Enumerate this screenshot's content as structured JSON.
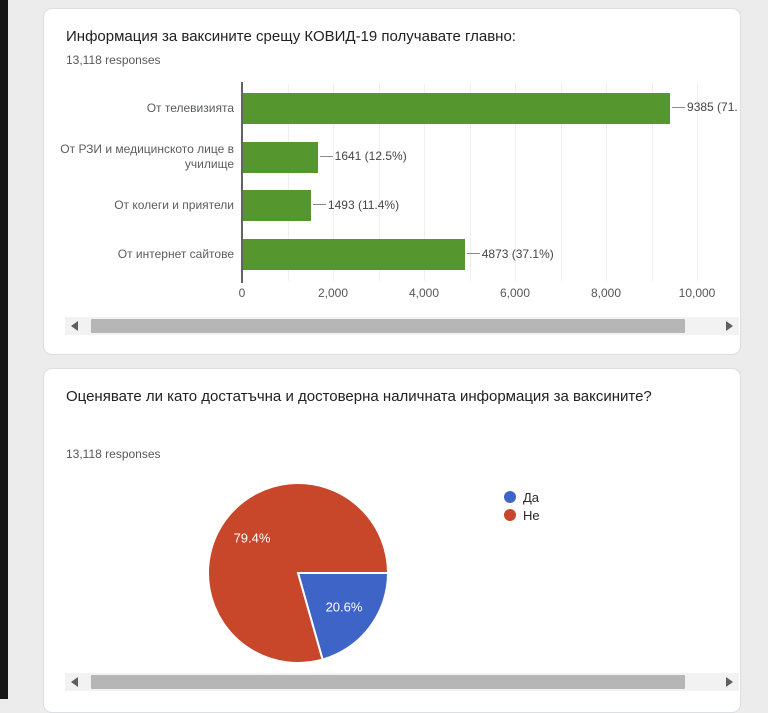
{
  "page": {
    "background_color": "#ececec",
    "edge_strip_color": "#161616",
    "card_background": "#ffffff"
  },
  "cards": [
    {
      "title": "Информация за ваксините срещу КОВИД-19 получавате главно:",
      "responses": "13,118 responses"
    },
    {
      "title": "Оценявате ли като достатъчна и достоверна наличната информация за ваксините?",
      "responses": "13,118 responses"
    }
  ],
  "icons": {
    "scroll_left": "left-triangle",
    "scroll_right": "right-triangle"
  },
  "chart_data": [
    {
      "type": "bar",
      "orientation": "horizontal",
      "categories": [
        "От телевизията",
        "От РЗИ и медицинското лице в училище",
        "От колеги и приятели",
        "От интернет сайтове"
      ],
      "values": [
        9385,
        1641,
        1493,
        4873
      ],
      "annotations": [
        "9385 (71.",
        "1641 (12.5%)",
        "1493 (11.4%)",
        "4873 (37.1%)"
      ],
      "xlim": [
        0,
        10000
      ],
      "x_ticks": [
        "0",
        "2,000",
        "4,000",
        "6,000",
        "8,000",
        "10,000"
      ],
      "gridline_step": 1000,
      "bar_color": "#55962f",
      "grid": true,
      "legend_position": "none"
    },
    {
      "type": "pie",
      "slices": [
        {
          "label": "Да",
          "pct": 20.6,
          "display": "20.6%",
          "color": "#3e64c8"
        },
        {
          "label": "Не",
          "pct": 79.4,
          "display": "79.4%",
          "color": "#c8472a"
        }
      ],
      "start_angle_deg": 90,
      "slice_border_color": "#ffffff",
      "label_color": "#ffffff",
      "legend_position": "right"
    }
  ]
}
